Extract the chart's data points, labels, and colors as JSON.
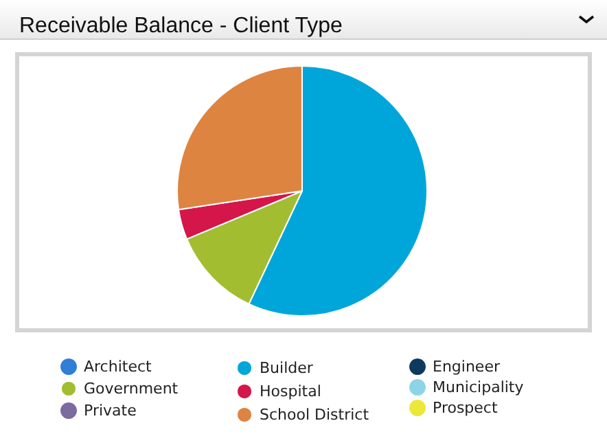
{
  "chart_data": {
    "type": "pie",
    "title": "Receivable Balance - Client Type",
    "categories": [
      "Architect",
      "Builder",
      "Engineer",
      "Government",
      "Hospital",
      "Municipality",
      "Private",
      "School District",
      "Prospect"
    ],
    "values": [
      0,
      57,
      0,
      11.7,
      3.9,
      0,
      0,
      27.4,
      0
    ],
    "colors": [
      "#2f7ed8",
      "#00a6d9",
      "#0d3a5c",
      "#a2bd30",
      "#d4164a",
      "#8dd4e6",
      "#7d6aa0",
      "#de8441",
      "#ebe83a"
    ],
    "legend": "bottom"
  }
}
